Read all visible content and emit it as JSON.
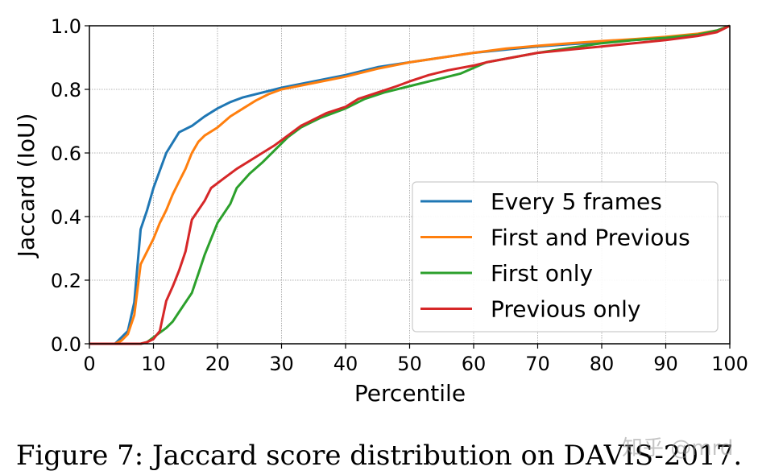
{
  "chart_data": {
    "type": "line",
    "title": "",
    "xlabel": "Percentile",
    "ylabel": "Jaccard (IoU)",
    "xlim": [
      0,
      100
    ],
    "ylim": [
      0,
      1.0
    ],
    "grid": true,
    "legend_position": "lower-right",
    "x_ticks": [
      0,
      10,
      20,
      30,
      40,
      50,
      60,
      70,
      80,
      90,
      100
    ],
    "y_ticks": [
      0.0,
      0.2,
      0.4,
      0.6,
      0.8,
      1.0
    ],
    "x_tick_labels": [
      "0",
      "10",
      "20",
      "30",
      "40",
      "50",
      "60",
      "70",
      "80",
      "90",
      "100"
    ],
    "y_tick_labels": [
      "0.0",
      "0.2",
      "0.4",
      "0.6",
      "0.8",
      "1.0"
    ],
    "series": [
      {
        "name": "Every 5 frames",
        "color": "#1f77b4",
        "points": [
          [
            0,
            0
          ],
          [
            4,
            0
          ],
          [
            5,
            0.02
          ],
          [
            6,
            0.04
          ],
          [
            7,
            0.13
          ],
          [
            8,
            0.36
          ],
          [
            9,
            0.42
          ],
          [
            10,
            0.49
          ],
          [
            12,
            0.6
          ],
          [
            14,
            0.665
          ],
          [
            16,
            0.685
          ],
          [
            18,
            0.715
          ],
          [
            20,
            0.74
          ],
          [
            22,
            0.76
          ],
          [
            24,
            0.775
          ],
          [
            26,
            0.785
          ],
          [
            28,
            0.795
          ],
          [
            30,
            0.805
          ],
          [
            35,
            0.825
          ],
          [
            40,
            0.845
          ],
          [
            45,
            0.87
          ],
          [
            50,
            0.885
          ],
          [
            55,
            0.9
          ],
          [
            60,
            0.915
          ],
          [
            65,
            0.925
          ],
          [
            70,
            0.935
          ],
          [
            75,
            0.942
          ],
          [
            80,
            0.948
          ],
          [
            85,
            0.955
          ],
          [
            90,
            0.962
          ],
          [
            95,
            0.972
          ],
          [
            98,
            0.985
          ],
          [
            100,
            1.0
          ]
        ]
      },
      {
        "name": "First and Previous",
        "color": "#ff7f0e",
        "points": [
          [
            0,
            0
          ],
          [
            4,
            0
          ],
          [
            5,
            0.01
          ],
          [
            6,
            0.03
          ],
          [
            7,
            0.09
          ],
          [
            8,
            0.25
          ],
          [
            10,
            0.33
          ],
          [
            11,
            0.38
          ],
          [
            12,
            0.42
          ],
          [
            13,
            0.47
          ],
          [
            14,
            0.51
          ],
          [
            15,
            0.55
          ],
          [
            16,
            0.6
          ],
          [
            17,
            0.635
          ],
          [
            18,
            0.655
          ],
          [
            20,
            0.68
          ],
          [
            22,
            0.715
          ],
          [
            24,
            0.74
          ],
          [
            26,
            0.765
          ],
          [
            28,
            0.785
          ],
          [
            30,
            0.8
          ],
          [
            35,
            0.82
          ],
          [
            40,
            0.84
          ],
          [
            45,
            0.865
          ],
          [
            50,
            0.885
          ],
          [
            55,
            0.9
          ],
          [
            60,
            0.915
          ],
          [
            65,
            0.928
          ],
          [
            70,
            0.937
          ],
          [
            75,
            0.945
          ],
          [
            80,
            0.952
          ],
          [
            85,
            0.958
          ],
          [
            90,
            0.965
          ],
          [
            95,
            0.975
          ],
          [
            98,
            0.985
          ],
          [
            100,
            1.0
          ]
        ]
      },
      {
        "name": "First only",
        "color": "#2ca02c",
        "points": [
          [
            0,
            0
          ],
          [
            8,
            0
          ],
          [
            9,
            0.005
          ],
          [
            10,
            0.02
          ],
          [
            11,
            0.035
          ],
          [
            12,
            0.05
          ],
          [
            13,
            0.07
          ],
          [
            14,
            0.1
          ],
          [
            16,
            0.16
          ],
          [
            17,
            0.22
          ],
          [
            18,
            0.28
          ],
          [
            20,
            0.38
          ],
          [
            22,
            0.44
          ],
          [
            23,
            0.49
          ],
          [
            25,
            0.535
          ],
          [
            27,
            0.57
          ],
          [
            29,
            0.61
          ],
          [
            31,
            0.65
          ],
          [
            33,
            0.68
          ],
          [
            36,
            0.71
          ],
          [
            40,
            0.74
          ],
          [
            43,
            0.77
          ],
          [
            46,
            0.79
          ],
          [
            50,
            0.81
          ],
          [
            54,
            0.83
          ],
          [
            58,
            0.85
          ],
          [
            62,
            0.885
          ],
          [
            66,
            0.9
          ],
          [
            70,
            0.915
          ],
          [
            75,
            0.93
          ],
          [
            80,
            0.945
          ],
          [
            85,
            0.955
          ],
          [
            90,
            0.962
          ],
          [
            95,
            0.972
          ],
          [
            98,
            0.985
          ],
          [
            100,
            1.0
          ]
        ]
      },
      {
        "name": "Previous only",
        "color": "#d62728",
        "points": [
          [
            0,
            0
          ],
          [
            8,
            0
          ],
          [
            9,
            0.005
          ],
          [
            10,
            0.015
          ],
          [
            11,
            0.04
          ],
          [
            12,
            0.135
          ],
          [
            13,
            0.18
          ],
          [
            14,
            0.23
          ],
          [
            15,
            0.29
          ],
          [
            16,
            0.39
          ],
          [
            18,
            0.45
          ],
          [
            19,
            0.49
          ],
          [
            21,
            0.52
          ],
          [
            23,
            0.55
          ],
          [
            25,
            0.575
          ],
          [
            27,
            0.6
          ],
          [
            29,
            0.625
          ],
          [
            31,
            0.655
          ],
          [
            33,
            0.685
          ],
          [
            35,
            0.705
          ],
          [
            37,
            0.725
          ],
          [
            40,
            0.745
          ],
          [
            42,
            0.77
          ],
          [
            45,
            0.79
          ],
          [
            48,
            0.81
          ],
          [
            50,
            0.825
          ],
          [
            53,
            0.845
          ],
          [
            56,
            0.86
          ],
          [
            60,
            0.875
          ],
          [
            62,
            0.885
          ],
          [
            66,
            0.9
          ],
          [
            70,
            0.915
          ],
          [
            75,
            0.925
          ],
          [
            80,
            0.935
          ],
          [
            85,
            0.945
          ],
          [
            90,
            0.955
          ],
          [
            95,
            0.968
          ],
          [
            98,
            0.98
          ],
          [
            100,
            1.0
          ]
        ]
      }
    ]
  },
  "caption": "Figure 7: Jaccard score distribution on DAVIS-2017.",
  "watermark": "知乎 @mrd"
}
